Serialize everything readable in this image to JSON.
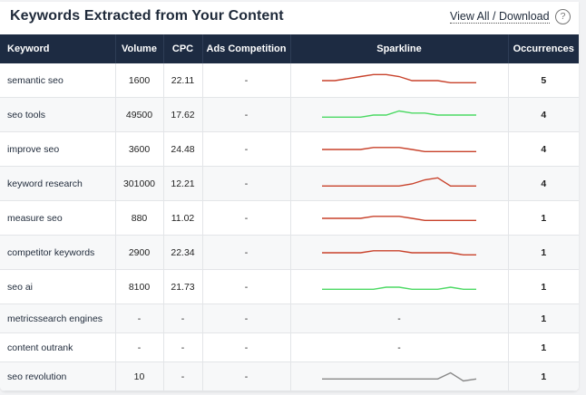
{
  "header": {
    "title": "Keywords Extracted from Your Content",
    "view_all_link": "View All / Download",
    "help_icon": "?"
  },
  "table": {
    "columns": [
      "Keyword",
      "Volume",
      "CPC",
      "Ads Competition",
      "Sparkline",
      "Occurrences"
    ],
    "rows": [
      {
        "keyword": "semantic seo",
        "volume": "1600",
        "cpc": "22.11",
        "ads": "-",
        "spark_text": "",
        "spark_color": "#c8412a",
        "spark": [
          4,
          4,
          5,
          6,
          7,
          7,
          6,
          4,
          4,
          4,
          3,
          3,
          3
        ],
        "occurrences": "5"
      },
      {
        "keyword": "seo tools",
        "volume": "49500",
        "cpc": "17.62",
        "ads": "-",
        "spark_text": "",
        "spark_color": "#4cd964",
        "spark": [
          3,
          3,
          3,
          3,
          4,
          4,
          6,
          5,
          5,
          4,
          4,
          4,
          4
        ],
        "occurrences": "4"
      },
      {
        "keyword": "improve seo",
        "volume": "3600",
        "cpc": "24.48",
        "ads": "-",
        "spark_text": "",
        "spark_color": "#c8412a",
        "spark": [
          4,
          4,
          4,
          4,
          5,
          5,
          5,
          4,
          3,
          3,
          3,
          3,
          3
        ],
        "occurrences": "4"
      },
      {
        "keyword": "keyword research",
        "volume": "301000",
        "cpc": "12.21",
        "ads": "-",
        "spark_text": "",
        "spark_color": "#c8412a",
        "spark": [
          3,
          3,
          3,
          3,
          3,
          3,
          3,
          4,
          6,
          7,
          3,
          3,
          3
        ],
        "occurrences": "4"
      },
      {
        "keyword": "measure seo",
        "volume": "880",
        "cpc": "11.02",
        "ads": "-",
        "spark_text": "",
        "spark_color": "#c8412a",
        "spark": [
          4,
          4,
          4,
          4,
          5,
          5,
          5,
          4,
          3,
          3,
          3,
          3,
          3
        ],
        "occurrences": "1"
      },
      {
        "keyword": "competitor keywords",
        "volume": "2900",
        "cpc": "22.34",
        "ads": "-",
        "spark_text": "",
        "spark_color": "#c8412a",
        "spark": [
          4,
          4,
          4,
          4,
          5,
          5,
          5,
          4,
          4,
          4,
          4,
          3,
          3
        ],
        "occurrences": "1"
      },
      {
        "keyword": "seo ai",
        "volume": "8100",
        "cpc": "21.73",
        "ads": "-",
        "spark_text": "",
        "spark_color": "#4cd964",
        "spark": [
          3,
          3,
          3,
          3,
          3,
          4,
          4,
          3,
          3,
          3,
          4,
          3,
          3
        ],
        "occurrences": "1"
      },
      {
        "keyword": "metricssearch engines",
        "volume": "-",
        "cpc": "-",
        "ads": "-",
        "spark_text": "-",
        "spark_color": "",
        "spark": [],
        "occurrences": "1"
      },
      {
        "keyword": "content outrank",
        "volume": "-",
        "cpc": "-",
        "ads": "-",
        "spark_text": "-",
        "spark_color": "",
        "spark": [],
        "occurrences": "1"
      },
      {
        "keyword": "seo revolution",
        "volume": "10",
        "cpc": "-",
        "ads": "-",
        "spark_text": "",
        "spark_color": "#888888",
        "spark": [
          3,
          3,
          3,
          3,
          3,
          3,
          3,
          3,
          3,
          3,
          6,
          2,
          3
        ],
        "occurrences": "1"
      }
    ]
  }
}
